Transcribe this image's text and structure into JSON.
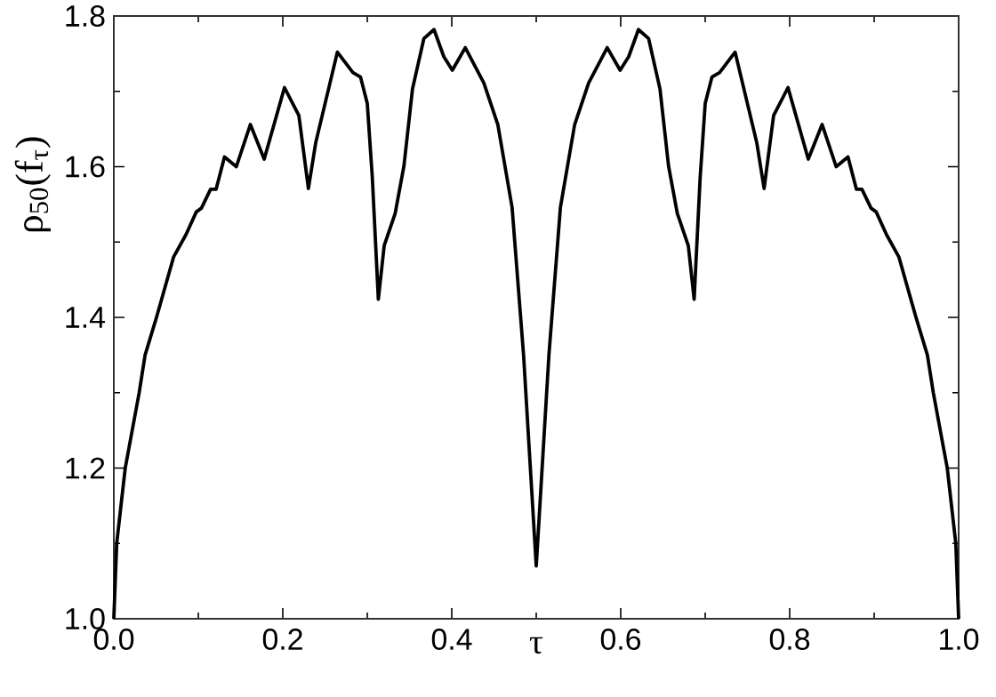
{
  "chart_data": {
    "type": "line",
    "xlabel": "τ",
    "ylabel": "ρ$_{50}$(f$_{τ}$)",
    "xlim": [
      0,
      1
    ],
    "ylim": [
      1.0,
      1.8
    ],
    "xticks": [
      {
        "value": 0,
        "label": "0.0"
      },
      {
        "value": 0.1,
        "label": null
      },
      {
        "value": 0.2,
        "label": "0.2"
      },
      {
        "value": 0.3,
        "label": null
      },
      {
        "value": 0.4,
        "label": "0.4"
      },
      {
        "value": 0.5,
        "label": null
      },
      {
        "value": 0.6,
        "label": "0.6"
      },
      {
        "value": 0.7,
        "label": null
      },
      {
        "value": 0.8,
        "label": "0.8"
      },
      {
        "value": 0.9,
        "label": null
      },
      {
        "value": 1,
        "label": "1.0"
      }
    ],
    "yticks": [
      {
        "value": 1.0,
        "label": "1.0"
      },
      {
        "value": 1.1,
        "label": null
      },
      {
        "value": 1.2,
        "label": "1.2"
      },
      {
        "value": 1.3,
        "label": null
      },
      {
        "value": 1.4,
        "label": "1.4"
      },
      {
        "value": 1.5,
        "label": null
      },
      {
        "value": 1.6,
        "label": "1.6"
      },
      {
        "value": 1.7,
        "label": null
      },
      {
        "value": 1.8,
        "label": "1.8"
      }
    ],
    "grid": false,
    "marker": "none",
    "line_style": "solid",
    "series": [
      {
        "color": "#000000",
        "x": [
          0,
          0.0034,
          0.0135,
          0.03,
          0.037,
          0.0505,
          0.0707,
          0.0855,
          0.0976,
          0.1037,
          0.1145,
          0.121,
          0.131,
          0.145,
          0.1616,
          0.178,
          0.202,
          0.219,
          0.2303,
          0.239,
          0.2646,
          0.283,
          0.292,
          0.3,
          0.306,
          0.3131,
          0.32,
          0.333,
          0.3434,
          0.3535,
          0.367,
          0.379,
          0.3906,
          0.4007,
          0.416,
          0.438,
          0.4545,
          0.4714,
          0.485,
          0.5,
          0.515,
          0.5286,
          0.5455,
          0.562,
          0.584,
          0.5993,
          0.6094,
          0.621,
          0.633,
          0.6465,
          0.6566,
          0.667,
          0.68,
          0.6869,
          0.694,
          0.7,
          0.708,
          0.717,
          0.7354,
          0.761,
          0.7697,
          0.781,
          0.798,
          0.822,
          0.8384,
          0.855,
          0.869,
          0.879,
          0.8855,
          0.8963,
          0.9024,
          0.9145,
          0.9293,
          0.9495,
          0.963,
          0.97,
          0.9865,
          0.9966,
          1
        ],
        "values": [
          1.0,
          1.1,
          1.2,
          1.3,
          1.35,
          1.4,
          1.48,
          1.51,
          1.54,
          1.545,
          1.57,
          1.57,
          1.613,
          1.6,
          1.656,
          1.61,
          1.705,
          1.668,
          1.571,
          1.632,
          1.752,
          1.725,
          1.719,
          1.684,
          1.585,
          1.424,
          1.495,
          1.538,
          1.601,
          1.703,
          1.77,
          1.782,
          1.746,
          1.728,
          1.758,
          1.711,
          1.656,
          1.546,
          1.35,
          1.07,
          1.35,
          1.546,
          1.656,
          1.711,
          1.758,
          1.728,
          1.746,
          1.782,
          1.77,
          1.703,
          1.601,
          1.538,
          1.495,
          1.424,
          1.585,
          1.684,
          1.719,
          1.725,
          1.752,
          1.632,
          1.571,
          1.668,
          1.705,
          1.61,
          1.656,
          1.6,
          1.613,
          1.57,
          1.57,
          1.545,
          1.54,
          1.51,
          1.48,
          1.4,
          1.35,
          1.3,
          1.2,
          1.1,
          1.0
        ]
      }
    ]
  }
}
